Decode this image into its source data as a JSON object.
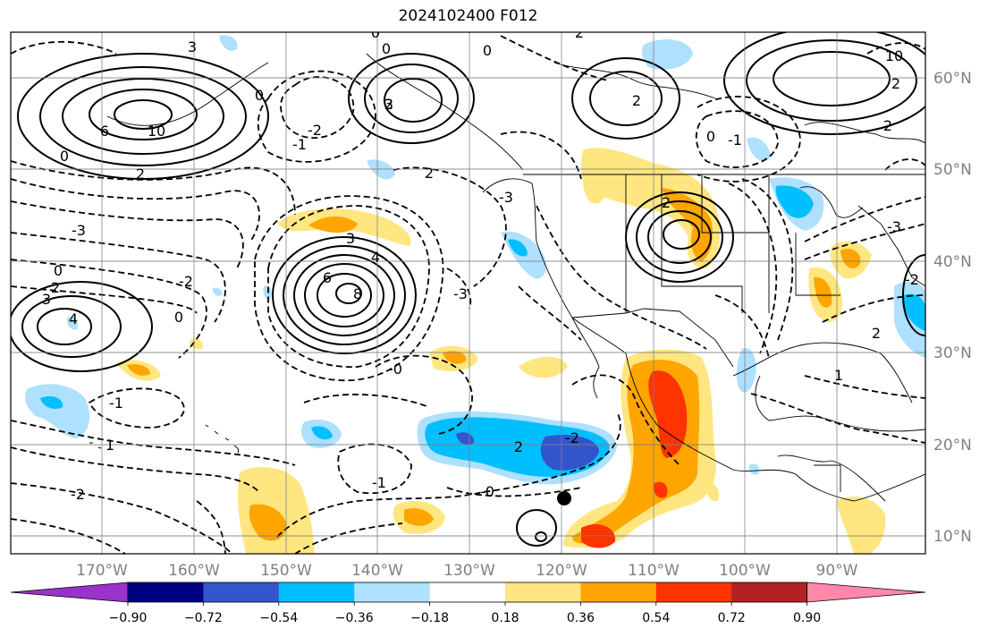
{
  "title": "2024102400 F012",
  "axes": {
    "lon_labels": [
      "170°W",
      "160°W",
      "150°W",
      "140°W",
      "130°W",
      "120°W",
      "110°W",
      "100°W",
      "90°W"
    ],
    "lat_labels": [
      "60°N",
      "50°N",
      "40°N",
      "30°N",
      "20°N",
      "10°N"
    ]
  },
  "colorbar": {
    "labels": [
      "−0.90",
      "−0.72",
      "−0.54",
      "−0.36",
      "−0.18",
      "0.18",
      "0.36",
      "0.54",
      "0.72",
      "0.90"
    ],
    "colors": [
      "#9933cc",
      "#000080",
      "#3355cc",
      "#00bfff",
      "#aee0ff",
      "#ffffff",
      "#ffe680",
      "#ffa500",
      "#ff3300",
      "#b22222",
      "#ff88aa"
    ]
  },
  "contour_labels": [
    "3",
    "0",
    "0",
    "2",
    "0",
    "2",
    "3",
    "10",
    "6",
    "0",
    "2",
    "-2",
    "-1",
    "2",
    "2",
    "0",
    "2",
    "-1",
    "0",
    "-3",
    "3",
    "4",
    "6",
    "8",
    "-3",
    "-3",
    "2",
    "0",
    "3",
    "-2",
    "0",
    "-1",
    "1",
    "-2",
    "2",
    "-0",
    "-1",
    "-2",
    "-0",
    "4",
    "10",
    "2",
    "2",
    "-3",
    "-2",
    "2",
    "1"
  ],
  "marker": {
    "label": ""
  }
}
